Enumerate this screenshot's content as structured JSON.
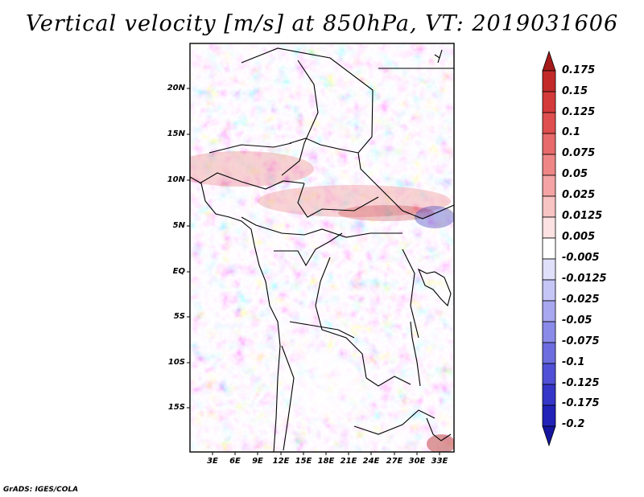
{
  "title": "Vertical velocity [m/s] at 850hPa, VT: 2019031606",
  "credit": "GrADS: IGES/COLA",
  "map": {
    "lat_labels": [
      "20N",
      "15N",
      "10N",
      "5N",
      "EQ",
      "5S",
      "10S",
      "15S"
    ],
    "lon_labels": [
      "3E",
      "6E",
      "9E",
      "12E",
      "15E",
      "18E",
      "21E",
      "24E",
      "27E",
      "30E",
      "33E"
    ]
  },
  "colorbar": {
    "labels": [
      "0.175",
      "0.15",
      "0.125",
      "0.1",
      "0.075",
      "0.05",
      "0.025",
      "0.0125",
      "0.005",
      "-0.005",
      "-0.0125",
      "-0.025",
      "-0.05",
      "-0.075",
      "-0.1",
      "-0.125",
      "-0.175",
      "-0.2"
    ],
    "colors": [
      "#a51a1a",
      "#c22a2a",
      "#d43a3a",
      "#e04f4f",
      "#e86a6a",
      "#ef8686",
      "#f4a4a4",
      "#f8c3c3",
      "#fce2e2",
      "#ffffff",
      "#e0e0fb",
      "#c5c5f6",
      "#a8a8f0",
      "#8a8ae8",
      "#6d6de0",
      "#5050d6",
      "#3535c8",
      "#2222b8",
      "#15159e"
    ]
  }
}
